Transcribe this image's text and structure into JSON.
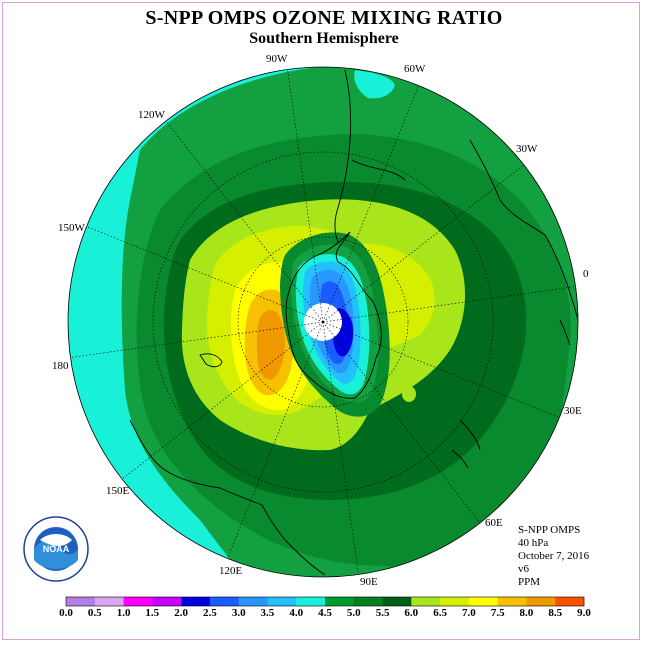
{
  "title": "S-NPP OMPS OZONE MIXING RATIO",
  "subtitle": "Southern Hemisphere",
  "longitude_labels": [
    "90W",
    "60W",
    "30W",
    "0",
    "30E",
    "60E",
    "90E",
    "120E",
    "150E",
    "180",
    "150W",
    "120W"
  ],
  "info": {
    "instrument": "S-NPP OMPS",
    "level": "40 hPa",
    "date": "October 7, 2016",
    "version": "v6",
    "units": "PPM"
  },
  "logo": {
    "text": "NOAA",
    "ring_text": "NATIONAL OCEANIC AND ATMOSPHERIC ADMINISTRATION · U.S. DEPARTMENT OF COMMERCE"
  },
  "colorbar": {
    "ticks": [
      "0.0",
      "0.5",
      "1.0",
      "1.5",
      "2.0",
      "2.5",
      "3.0",
      "3.5",
      "4.0",
      "4.5",
      "5.0",
      "5.5",
      "6.0",
      "6.5",
      "7.0",
      "7.5",
      "8.0",
      "8.5",
      "9.0"
    ],
    "colors": [
      "#b27fe6",
      "#d9a6f2",
      "#ff00ff",
      "#c800ff",
      "#0000e0",
      "#1a5cff",
      "#2a96ff",
      "#22c0ff",
      "#19f0d8",
      "#009a2e",
      "#00811f",
      "#005e15",
      "#a8e61b",
      "#d4f000",
      "#ffff00",
      "#f7c000",
      "#ef9800",
      "#ff5000",
      "#e60000",
      "#8c5232"
    ]
  },
  "map": {
    "colors": {
      "turquoise": "#19f0d8",
      "green45": "#12a040",
      "green50": "#0a8a2e",
      "green55": "#006b1c",
      "lime55": "#a8e61b",
      "lime60": "#d4f000",
      "yellow65": "#ffff00",
      "gold70": "#f7c000",
      "orange75": "#ef9800",
      "blue30": "#2a96ff",
      "blue25": "#1a5cff",
      "blue20": "#0000e0",
      "cyan35": "#22c0ff"
    }
  }
}
